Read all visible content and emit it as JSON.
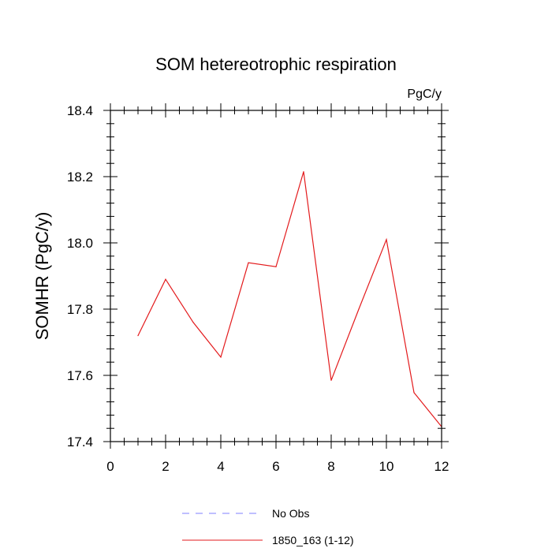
{
  "chart_data": {
    "type": "line",
    "title": "SOM hetereotrophic respiration",
    "units_label": "PgC/y",
    "ylabel": "SOMHR  (PgC/y)",
    "xlabel": "",
    "xlim": [
      0,
      12
    ],
    "ylim": [
      17.4,
      18.4
    ],
    "x_ticks": [
      0,
      2,
      4,
      6,
      8,
      10,
      12
    ],
    "x_tick_labels": [
      "0",
      "2",
      "4",
      "6",
      "8",
      "10",
      "12"
    ],
    "y_ticks": [
      17.4,
      17.6,
      17.8,
      18.0,
      18.2,
      18.4
    ],
    "y_tick_labels": [
      "17.4",
      "17.6",
      "17.8",
      "18.0",
      "18.2",
      "18.4"
    ],
    "grid": false,
    "legend_position": "bottom",
    "series": [
      {
        "name": "1850_163 (1-12)",
        "color": "#e31a1c",
        "style": "solid",
        "x": [
          1,
          2,
          3,
          4,
          5,
          6,
          7,
          8,
          9,
          10,
          11,
          12
        ],
        "y": [
          17.72,
          17.89,
          17.76,
          17.655,
          17.94,
          17.928,
          18.215,
          17.585,
          17.8,
          18.01,
          17.548,
          17.445
        ]
      }
    ],
    "legend": [
      {
        "label": "No Obs",
        "color": "#7f7fff",
        "style": "dashed"
      },
      {
        "label": "1850_163 (1-12)",
        "color": "#e31a1c",
        "style": "solid"
      }
    ]
  }
}
